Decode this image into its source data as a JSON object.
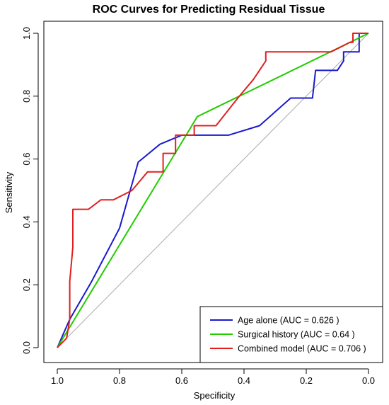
{
  "chart_data": {
    "type": "line",
    "title": "ROC Curves for Predicting Residual Tissue",
    "xlabel": "Specificity",
    "ylabel": "Sensitivity",
    "xlim": [
      1.0,
      0.0
    ],
    "ylim": [
      0.0,
      1.0
    ],
    "x_reversed": true,
    "x_ticks": [
      "1.0",
      "0.8",
      "0.6",
      "0.4",
      "0.2",
      "0.0"
    ],
    "y_ticks": [
      "0.0",
      "0.2",
      "0.4",
      "0.6",
      "0.8",
      "1.0"
    ],
    "diagonal_reference": true,
    "grid": false,
    "legend_position": "bottom-right",
    "series": [
      {
        "name": "Age alone (AUC = 0.626 )",
        "color": "#1a1acc",
        "points": [
          [
            1.0,
            0.0
          ],
          [
            0.96,
            0.09
          ],
          [
            0.89,
            0.21
          ],
          [
            0.8,
            0.38
          ],
          [
            0.74,
            0.59
          ],
          [
            0.67,
            0.647
          ],
          [
            0.6,
            0.676
          ],
          [
            0.45,
            0.676
          ],
          [
            0.35,
            0.706
          ],
          [
            0.25,
            0.794
          ],
          [
            0.18,
            0.794
          ],
          [
            0.17,
            0.882
          ],
          [
            0.1,
            0.882
          ],
          [
            0.08,
            0.912
          ],
          [
            0.08,
            0.941
          ],
          [
            0.03,
            0.941
          ],
          [
            0.03,
            1.0
          ],
          [
            0.0,
            1.0
          ]
        ]
      },
      {
        "name": "Surgical history (AUC = 0.64 )",
        "color": "#22cc00",
        "points": [
          [
            1.0,
            0.0
          ],
          [
            0.55,
            0.735
          ],
          [
            0.0,
            1.0
          ]
        ]
      },
      {
        "name": "Combined model (AUC = 0.706 )",
        "color": "#e02020",
        "points": [
          [
            1.0,
            0.0
          ],
          [
            0.97,
            0.03
          ],
          [
            0.96,
            0.09
          ],
          [
            0.96,
            0.21
          ],
          [
            0.95,
            0.32
          ],
          [
            0.95,
            0.44
          ],
          [
            0.9,
            0.44
          ],
          [
            0.86,
            0.47
          ],
          [
            0.82,
            0.47
          ],
          [
            0.76,
            0.5
          ],
          [
            0.71,
            0.559
          ],
          [
            0.66,
            0.559
          ],
          [
            0.66,
            0.618
          ],
          [
            0.62,
            0.618
          ],
          [
            0.62,
            0.676
          ],
          [
            0.56,
            0.676
          ],
          [
            0.56,
            0.706
          ],
          [
            0.49,
            0.706
          ],
          [
            0.42,
            0.794
          ],
          [
            0.37,
            0.853
          ],
          [
            0.33,
            0.912
          ],
          [
            0.33,
            0.941
          ],
          [
            0.12,
            0.941
          ],
          [
            0.06,
            0.971
          ],
          [
            0.05,
            0.971
          ],
          [
            0.05,
            1.0
          ],
          [
            0.0,
            1.0
          ]
        ]
      }
    ]
  }
}
